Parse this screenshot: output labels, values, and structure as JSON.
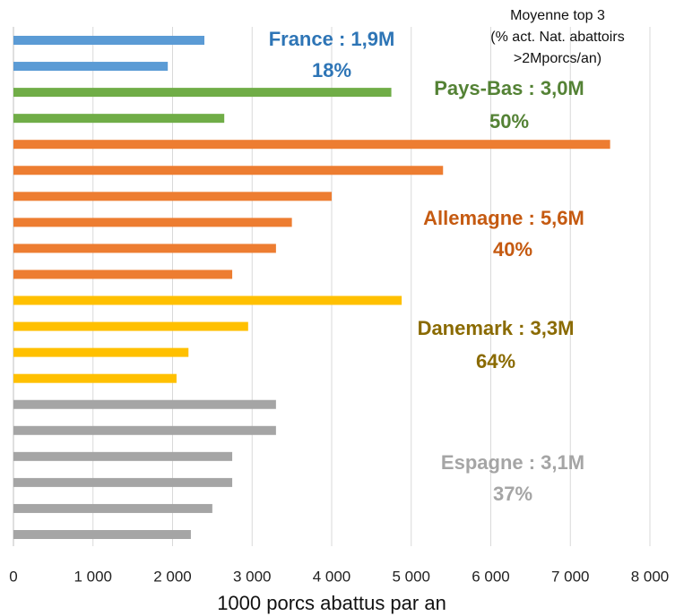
{
  "chart_data": {
    "type": "bar",
    "orientation": "horizontal",
    "categories": [
      null,
      null,
      null,
      null,
      null,
      null,
      null,
      null,
      null,
      null,
      null,
      null,
      null,
      null,
      null,
      null,
      null,
      null,
      null,
      null
    ],
    "values": [
      2400,
      1940,
      4750,
      2650,
      7500,
      5400,
      4000,
      3500,
      3300,
      2750,
      4880,
      2950,
      2200,
      2050,
      3300,
      3300,
      2750,
      2750,
      2500,
      2230
    ],
    "colors": [
      "#5b9bd5",
      "#5b9bd5",
      "#70ad47",
      "#70ad47",
      "#ed7d31",
      "#ed7d31",
      "#ed7d31",
      "#ed7d31",
      "#ed7d31",
      "#ed7d31",
      "#ffc000",
      "#ffc000",
      "#ffc000",
      "#ffc000",
      "#a5a5a5",
      "#a5a5a5",
      "#a5a5a5",
      "#a5a5a5",
      "#a5a5a5",
      "#a5a5a5"
    ],
    "xlim": [
      0,
      8000
    ],
    "xticks": [
      0,
      {
        "value": 1000,
        "label": "1 000"
      },
      {
        "value": 2000,
        "label": "2 000"
      },
      {
        "value": 3000,
        "label": "3 000"
      },
      {
        "value": 4000,
        "label": "4 000"
      },
      {
        "value": 5000,
        "label": "5 000"
      },
      {
        "value": 6000,
        "label": "6 000"
      },
      {
        "value": 7000,
        "label": "7 000"
      },
      {
        "value": 8000,
        "label": "8 000"
      }
    ],
    "grid": true,
    "xlabel": "1000 porcs abattus par an",
    "note": [
      "Moyenne top 3",
      "(% act. Nat. abattoirs",
      ">2Mporcs/an)"
    ],
    "annotations": [
      {
        "label": "France : 1,9M",
        "share": "18%",
        "color": "#2e75b6"
      },
      {
        "label": "Pays-Bas : 3,0M",
        "share": "50%",
        "color": "#548235"
      },
      {
        "label": "Allemagne : 5,6M",
        "share": "40%",
        "color": "#c55a11"
      },
      {
        "label": "Danemark : 3,3M",
        "share": "64%",
        "color": "#8a6a00"
      },
      {
        "label": "Espagne : 3,1M",
        "share": "37%",
        "color": "#a5a5a5"
      }
    ]
  }
}
